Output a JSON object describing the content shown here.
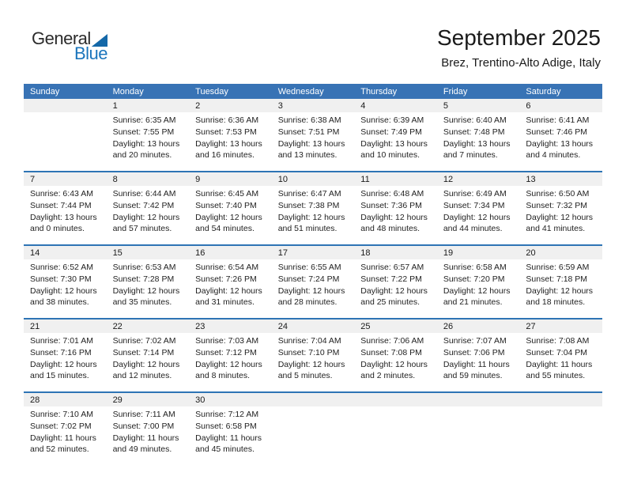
{
  "logo": {
    "part1": "General",
    "part2": "Blue",
    "triangle_color": "#1468a8",
    "blue_color": "#1b75bc"
  },
  "header": {
    "title": "September 2025",
    "subtitle": "Brez, Trentino-Alto Adige, Italy"
  },
  "calendar": {
    "header_bg": "#3873b5",
    "row_border_color": "#2e74b5",
    "daynum_strip_bg": "#f0f0f0",
    "weekdays": [
      "Sunday",
      "Monday",
      "Tuesday",
      "Wednesday",
      "Thursday",
      "Friday",
      "Saturday"
    ],
    "weeks": [
      {
        "days": [
          {
            "num": "",
            "sunrise": "",
            "sunset": "",
            "daylight1": "",
            "daylight2": ""
          },
          {
            "num": "1",
            "sunrise": "Sunrise: 6:35 AM",
            "sunset": "Sunset: 7:55 PM",
            "daylight1": "Daylight: 13 hours",
            "daylight2": "and 20 minutes."
          },
          {
            "num": "2",
            "sunrise": "Sunrise: 6:36 AM",
            "sunset": "Sunset: 7:53 PM",
            "daylight1": "Daylight: 13 hours",
            "daylight2": "and 16 minutes."
          },
          {
            "num": "3",
            "sunrise": "Sunrise: 6:38 AM",
            "sunset": "Sunset: 7:51 PM",
            "daylight1": "Daylight: 13 hours",
            "daylight2": "and 13 minutes."
          },
          {
            "num": "4",
            "sunrise": "Sunrise: 6:39 AM",
            "sunset": "Sunset: 7:49 PM",
            "daylight1": "Daylight: 13 hours",
            "daylight2": "and 10 minutes."
          },
          {
            "num": "5",
            "sunrise": "Sunrise: 6:40 AM",
            "sunset": "Sunset: 7:48 PM",
            "daylight1": "Daylight: 13 hours",
            "daylight2": "and 7 minutes."
          },
          {
            "num": "6",
            "sunrise": "Sunrise: 6:41 AM",
            "sunset": "Sunset: 7:46 PM",
            "daylight1": "Daylight: 13 hours",
            "daylight2": "and 4 minutes."
          }
        ]
      },
      {
        "days": [
          {
            "num": "7",
            "sunrise": "Sunrise: 6:43 AM",
            "sunset": "Sunset: 7:44 PM",
            "daylight1": "Daylight: 13 hours",
            "daylight2": "and 0 minutes."
          },
          {
            "num": "8",
            "sunrise": "Sunrise: 6:44 AM",
            "sunset": "Sunset: 7:42 PM",
            "daylight1": "Daylight: 12 hours",
            "daylight2": "and 57 minutes."
          },
          {
            "num": "9",
            "sunrise": "Sunrise: 6:45 AM",
            "sunset": "Sunset: 7:40 PM",
            "daylight1": "Daylight: 12 hours",
            "daylight2": "and 54 minutes."
          },
          {
            "num": "10",
            "sunrise": "Sunrise: 6:47 AM",
            "sunset": "Sunset: 7:38 PM",
            "daylight1": "Daylight: 12 hours",
            "daylight2": "and 51 minutes."
          },
          {
            "num": "11",
            "sunrise": "Sunrise: 6:48 AM",
            "sunset": "Sunset: 7:36 PM",
            "daylight1": "Daylight: 12 hours",
            "daylight2": "and 48 minutes."
          },
          {
            "num": "12",
            "sunrise": "Sunrise: 6:49 AM",
            "sunset": "Sunset: 7:34 PM",
            "daylight1": "Daylight: 12 hours",
            "daylight2": "and 44 minutes."
          },
          {
            "num": "13",
            "sunrise": "Sunrise: 6:50 AM",
            "sunset": "Sunset: 7:32 PM",
            "daylight1": "Daylight: 12 hours",
            "daylight2": "and 41 minutes."
          }
        ]
      },
      {
        "days": [
          {
            "num": "14",
            "sunrise": "Sunrise: 6:52 AM",
            "sunset": "Sunset: 7:30 PM",
            "daylight1": "Daylight: 12 hours",
            "daylight2": "and 38 minutes."
          },
          {
            "num": "15",
            "sunrise": "Sunrise: 6:53 AM",
            "sunset": "Sunset: 7:28 PM",
            "daylight1": "Daylight: 12 hours",
            "daylight2": "and 35 minutes."
          },
          {
            "num": "16",
            "sunrise": "Sunrise: 6:54 AM",
            "sunset": "Sunset: 7:26 PM",
            "daylight1": "Daylight: 12 hours",
            "daylight2": "and 31 minutes."
          },
          {
            "num": "17",
            "sunrise": "Sunrise: 6:55 AM",
            "sunset": "Sunset: 7:24 PM",
            "daylight1": "Daylight: 12 hours",
            "daylight2": "and 28 minutes."
          },
          {
            "num": "18",
            "sunrise": "Sunrise: 6:57 AM",
            "sunset": "Sunset: 7:22 PM",
            "daylight1": "Daylight: 12 hours",
            "daylight2": "and 25 minutes."
          },
          {
            "num": "19",
            "sunrise": "Sunrise: 6:58 AM",
            "sunset": "Sunset: 7:20 PM",
            "daylight1": "Daylight: 12 hours",
            "daylight2": "and 21 minutes."
          },
          {
            "num": "20",
            "sunrise": "Sunrise: 6:59 AM",
            "sunset": "Sunset: 7:18 PM",
            "daylight1": "Daylight: 12 hours",
            "daylight2": "and 18 minutes."
          }
        ]
      },
      {
        "days": [
          {
            "num": "21",
            "sunrise": "Sunrise: 7:01 AM",
            "sunset": "Sunset: 7:16 PM",
            "daylight1": "Daylight: 12 hours",
            "daylight2": "and 15 minutes."
          },
          {
            "num": "22",
            "sunrise": "Sunrise: 7:02 AM",
            "sunset": "Sunset: 7:14 PM",
            "daylight1": "Daylight: 12 hours",
            "daylight2": "and 12 minutes."
          },
          {
            "num": "23",
            "sunrise": "Sunrise: 7:03 AM",
            "sunset": "Sunset: 7:12 PM",
            "daylight1": "Daylight: 12 hours",
            "daylight2": "and 8 minutes."
          },
          {
            "num": "24",
            "sunrise": "Sunrise: 7:04 AM",
            "sunset": "Sunset: 7:10 PM",
            "daylight1": "Daylight: 12 hours",
            "daylight2": "and 5 minutes."
          },
          {
            "num": "25",
            "sunrise": "Sunrise: 7:06 AM",
            "sunset": "Sunset: 7:08 PM",
            "daylight1": "Daylight: 12 hours",
            "daylight2": "and 2 minutes."
          },
          {
            "num": "26",
            "sunrise": "Sunrise: 7:07 AM",
            "sunset": "Sunset: 7:06 PM",
            "daylight1": "Daylight: 11 hours",
            "daylight2": "and 59 minutes."
          },
          {
            "num": "27",
            "sunrise": "Sunrise: 7:08 AM",
            "sunset": "Sunset: 7:04 PM",
            "daylight1": "Daylight: 11 hours",
            "daylight2": "and 55 minutes."
          }
        ]
      },
      {
        "days": [
          {
            "num": "28",
            "sunrise": "Sunrise: 7:10 AM",
            "sunset": "Sunset: 7:02 PM",
            "daylight1": "Daylight: 11 hours",
            "daylight2": "and 52 minutes."
          },
          {
            "num": "29",
            "sunrise": "Sunrise: 7:11 AM",
            "sunset": "Sunset: 7:00 PM",
            "daylight1": "Daylight: 11 hours",
            "daylight2": "and 49 minutes."
          },
          {
            "num": "30",
            "sunrise": "Sunrise: 7:12 AM",
            "sunset": "Sunset: 6:58 PM",
            "daylight1": "Daylight: 11 hours",
            "daylight2": "and 45 minutes."
          },
          {
            "num": "",
            "sunrise": "",
            "sunset": "",
            "daylight1": "",
            "daylight2": ""
          },
          {
            "num": "",
            "sunrise": "",
            "sunset": "",
            "daylight1": "",
            "daylight2": ""
          },
          {
            "num": "",
            "sunrise": "",
            "sunset": "",
            "daylight1": "",
            "daylight2": ""
          },
          {
            "num": "",
            "sunrise": "",
            "sunset": "",
            "daylight1": "",
            "daylight2": ""
          }
        ]
      }
    ]
  }
}
